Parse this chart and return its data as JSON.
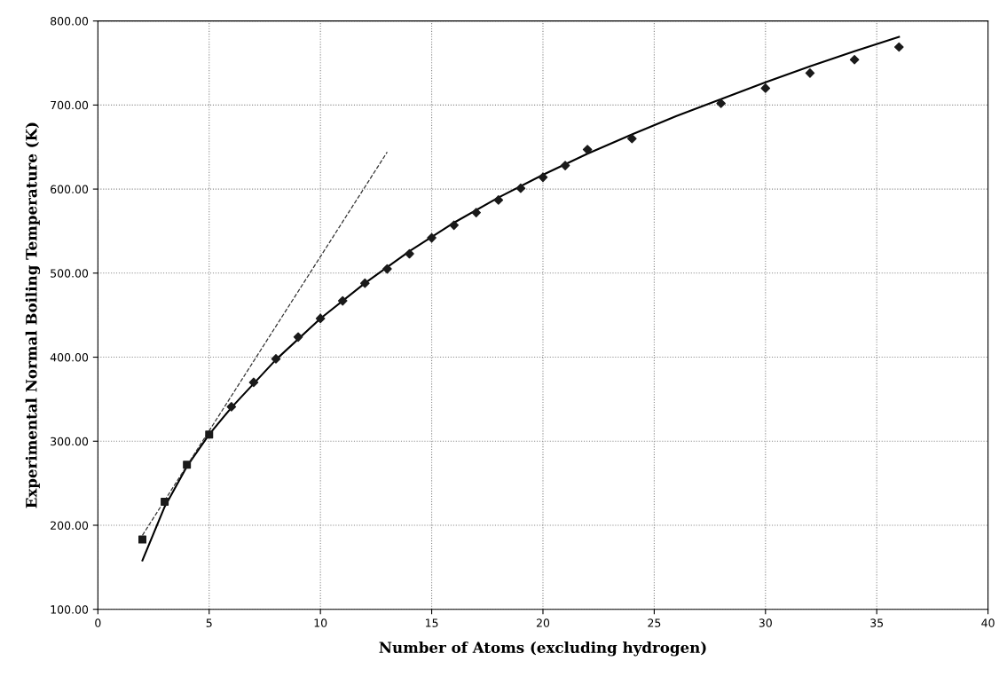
{
  "chart_data": {
    "type": "scatter",
    "xlabel": "Number of Atoms (excluding hydrogen)",
    "ylabel": "Experimental Normal Boiling Temperature (K)",
    "xlim": [
      0,
      40
    ],
    "xticks": [
      0,
      5,
      10,
      15,
      20,
      25,
      30,
      35,
      40
    ],
    "ylim": [
      100,
      800
    ],
    "yticks": [
      {
        "value": 100,
        "label": "100.00"
      },
      {
        "value": 200,
        "label": "200.00"
      },
      {
        "value": 300,
        "label": "300.00"
      },
      {
        "value": 400,
        "label": "400.00"
      },
      {
        "value": 500,
        "label": "500.00"
      },
      {
        "value": 600,
        "label": "600.00"
      },
      {
        "value": 700,
        "label": "700.00"
      },
      {
        "value": 800,
        "label": "800.00"
      }
    ],
    "grid": true,
    "legend": false,
    "series": [
      {
        "marker": "square",
        "color": "#1a1a1a",
        "x": [
          2,
          3,
          4,
          5
        ],
        "values": [
          183,
          228,
          272,
          308
        ]
      },
      {
        "marker": "diamond",
        "color": "#1a1a1a",
        "x": [
          6,
          7,
          8,
          9,
          10,
          11,
          12,
          13,
          14,
          15,
          16,
          17,
          18,
          19,
          20,
          21,
          22,
          24,
          28,
          30,
          32,
          34,
          36
        ],
        "values": [
          341,
          370,
          398,
          424,
          446,
          467,
          488,
          505,
          523,
          542,
          557,
          572,
          587,
          601,
          614,
          628,
          647,
          660,
          702,
          720,
          738,
          754,
          769
        ]
      },
      {
        "type": "line",
        "line_style": "solid",
        "marker": "none",
        "color": "#000000",
        "x": [
          2,
          3,
          4,
          5,
          6,
          8,
          10,
          12,
          14,
          16,
          18,
          20,
          22,
          24,
          26,
          28,
          30,
          32,
          34,
          36
        ],
        "values": [
          158,
          222,
          270,
          308,
          340,
          397,
          446,
          488,
          526,
          560,
          590,
          617,
          642,
          665,
          687,
          707,
          727,
          746,
          764,
          781
        ]
      },
      {
        "type": "line",
        "line_style": "dashed",
        "marker": "none",
        "color": "#333333",
        "x": [
          2,
          13
        ],
        "values": [
          188,
          644
        ]
      }
    ]
  }
}
